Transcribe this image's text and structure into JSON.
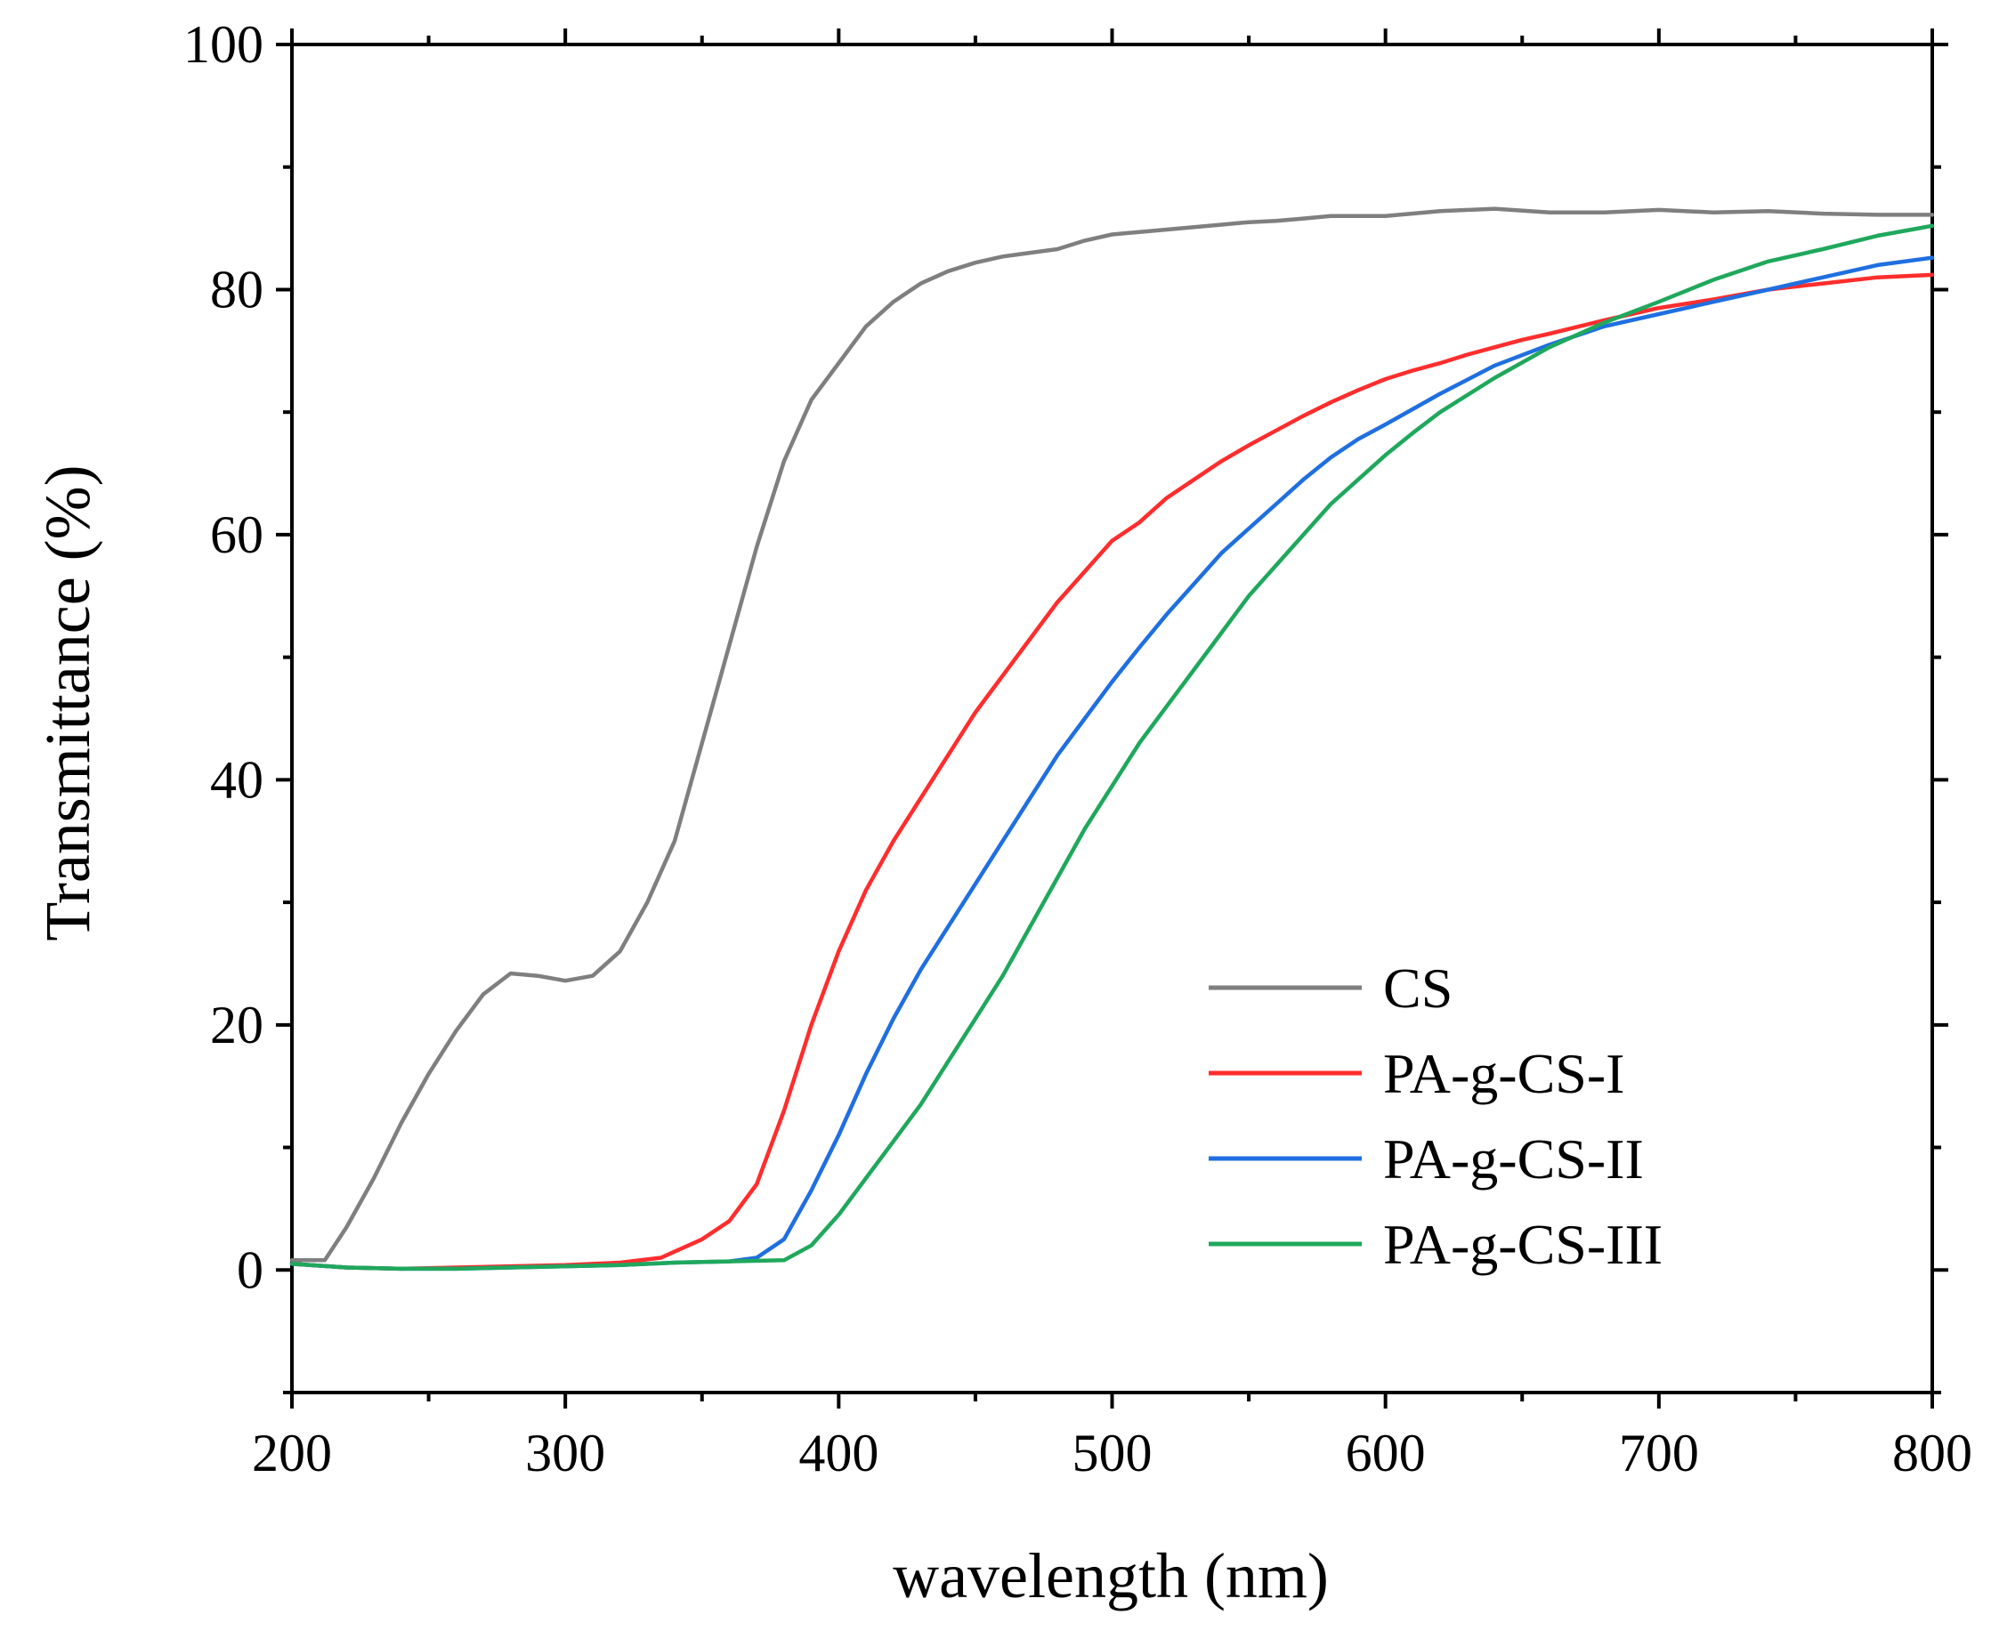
{
  "chart_data": {
    "type": "line",
    "title": "",
    "xlabel": "wavelength (nm)",
    "ylabel": "Transmittance (%)",
    "xlim": [
      200,
      800
    ],
    "ylim": [
      -10,
      100
    ],
    "xticks": [
      200,
      300,
      400,
      500,
      600,
      700,
      800
    ],
    "yticks": [
      0,
      20,
      40,
      60,
      80,
      100
    ],
    "grid": false,
    "legend_position": "bottom-right",
    "series": [
      {
        "name": "CS",
        "color": "#7f7f7f",
        "points": [
          [
            200,
            0.8
          ],
          [
            212,
            0.8
          ],
          [
            220,
            3.5
          ],
          [
            230,
            7.5
          ],
          [
            240,
            12
          ],
          [
            250,
            16
          ],
          [
            260,
            19.5
          ],
          [
            270,
            22.5
          ],
          [
            280,
            24.2
          ],
          [
            290,
            24
          ],
          [
            300,
            23.6
          ],
          [
            310,
            24
          ],
          [
            320,
            26
          ],
          [
            330,
            30
          ],
          [
            340,
            35
          ],
          [
            350,
            43
          ],
          [
            360,
            51
          ],
          [
            370,
            59
          ],
          [
            380,
            66
          ],
          [
            390,
            71
          ],
          [
            400,
            74
          ],
          [
            410,
            77
          ],
          [
            420,
            79
          ],
          [
            430,
            80.5
          ],
          [
            440,
            81.5
          ],
          [
            450,
            82.2
          ],
          [
            460,
            82.7
          ],
          [
            470,
            83
          ],
          [
            480,
            83.3
          ],
          [
            490,
            84
          ],
          [
            500,
            84.5
          ],
          [
            510,
            84.7
          ],
          [
            520,
            84.9
          ],
          [
            530,
            85.1
          ],
          [
            540,
            85.3
          ],
          [
            550,
            85.5
          ],
          [
            560,
            85.6
          ],
          [
            570,
            85.8
          ],
          [
            580,
            86
          ],
          [
            600,
            86
          ],
          [
            620,
            86.4
          ],
          [
            640,
            86.6
          ],
          [
            660,
            86.3
          ],
          [
            680,
            86.3
          ],
          [
            700,
            86.5
          ],
          [
            720,
            86.3
          ],
          [
            740,
            86.4
          ],
          [
            760,
            86.2
          ],
          [
            780,
            86.1
          ],
          [
            800,
            86.1
          ]
        ]
      },
      {
        "name": "PA-g-CS-I",
        "color": "#ff2d2d",
        "points": [
          [
            200,
            0.5
          ],
          [
            220,
            0.2
          ],
          [
            240,
            0.1
          ],
          [
            260,
            0.2
          ],
          [
            280,
            0.3
          ],
          [
            300,
            0.4
          ],
          [
            320,
            0.6
          ],
          [
            335,
            1
          ],
          [
            340,
            1.5
          ],
          [
            350,
            2.5
          ],
          [
            360,
            4
          ],
          [
            370,
            7
          ],
          [
            380,
            13
          ],
          [
            390,
            20
          ],
          [
            400,
            26
          ],
          [
            410,
            31
          ],
          [
            420,
            35
          ],
          [
            430,
            38.5
          ],
          [
            440,
            42
          ],
          [
            450,
            45.5
          ],
          [
            460,
            48.5
          ],
          [
            470,
            51.5
          ],
          [
            480,
            54.5
          ],
          [
            490,
            57
          ],
          [
            500,
            59.5
          ],
          [
            510,
            61
          ],
          [
            520,
            63
          ],
          [
            530,
            64.5
          ],
          [
            540,
            66
          ],
          [
            550,
            67.3
          ],
          [
            560,
            68.5
          ],
          [
            570,
            69.7
          ],
          [
            580,
            70.8
          ],
          [
            590,
            71.8
          ],
          [
            600,
            72.7
          ],
          [
            610,
            73.4
          ],
          [
            620,
            74
          ],
          [
            630,
            74.7
          ],
          [
            640,
            75.3
          ],
          [
            650,
            75.9
          ],
          [
            660,
            76.4
          ],
          [
            680,
            77.5
          ],
          [
            700,
            78.5
          ],
          [
            720,
            79.2
          ],
          [
            740,
            80
          ],
          [
            760,
            80.5
          ],
          [
            780,
            81
          ],
          [
            800,
            81.2
          ]
        ]
      },
      {
        "name": "PA-g-CS-II",
        "color": "#1f6fe0",
        "points": [
          [
            200,
            0.5
          ],
          [
            220,
            0.2
          ],
          [
            240,
            0.1
          ],
          [
            260,
            0.1
          ],
          [
            280,
            0.2
          ],
          [
            300,
            0.3
          ],
          [
            320,
            0.4
          ],
          [
            340,
            0.6
          ],
          [
            360,
            0.7
          ],
          [
            370,
            1
          ],
          [
            380,
            2.5
          ],
          [
            390,
            6.5
          ],
          [
            400,
            11
          ],
          [
            410,
            16
          ],
          [
            420,
            20.5
          ],
          [
            430,
            24.5
          ],
          [
            440,
            28
          ],
          [
            450,
            31.5
          ],
          [
            460,
            35
          ],
          [
            470,
            38.5
          ],
          [
            480,
            42
          ],
          [
            490,
            45
          ],
          [
            500,
            48
          ],
          [
            510,
            50.8
          ],
          [
            520,
            53.5
          ],
          [
            530,
            56
          ],
          [
            540,
            58.5
          ],
          [
            550,
            60.5
          ],
          [
            560,
            62.5
          ],
          [
            570,
            64.5
          ],
          [
            580,
            66.3
          ],
          [
            590,
            67.8
          ],
          [
            600,
            69
          ],
          [
            620,
            71.5
          ],
          [
            640,
            73.8
          ],
          [
            660,
            75.5
          ],
          [
            680,
            77
          ],
          [
            700,
            78
          ],
          [
            720,
            79
          ],
          [
            740,
            80
          ],
          [
            760,
            81
          ],
          [
            780,
            82
          ],
          [
            800,
            82.6
          ]
        ]
      },
      {
        "name": "PA-g-CS-III",
        "color": "#1fa85c",
        "points": [
          [
            200,
            0.5
          ],
          [
            220,
            0.2
          ],
          [
            240,
            0.1
          ],
          [
            260,
            0.1
          ],
          [
            280,
            0.2
          ],
          [
            300,
            0.3
          ],
          [
            320,
            0.4
          ],
          [
            340,
            0.6
          ],
          [
            360,
            0.7
          ],
          [
            380,
            0.8
          ],
          [
            390,
            2
          ],
          [
            400,
            4.5
          ],
          [
            410,
            7.5
          ],
          [
            420,
            10.5
          ],
          [
            430,
            13.5
          ],
          [
            440,
            17
          ],
          [
            450,
            20.5
          ],
          [
            460,
            24
          ],
          [
            470,
            28
          ],
          [
            480,
            32
          ],
          [
            490,
            36
          ],
          [
            500,
            39.5
          ],
          [
            510,
            43
          ],
          [
            520,
            46
          ],
          [
            530,
            49
          ],
          [
            540,
            52
          ],
          [
            550,
            55
          ],
          [
            560,
            57.5
          ],
          [
            570,
            60
          ],
          [
            580,
            62.5
          ],
          [
            590,
            64.5
          ],
          [
            600,
            66.5
          ],
          [
            610,
            68.3
          ],
          [
            620,
            70
          ],
          [
            640,
            72.8
          ],
          [
            660,
            75.3
          ],
          [
            680,
            77.3
          ],
          [
            700,
            79
          ],
          [
            720,
            80.8
          ],
          [
            740,
            82.3
          ],
          [
            760,
            83.3
          ],
          [
            780,
            84.4
          ],
          [
            800,
            85.2
          ]
        ]
      }
    ]
  }
}
